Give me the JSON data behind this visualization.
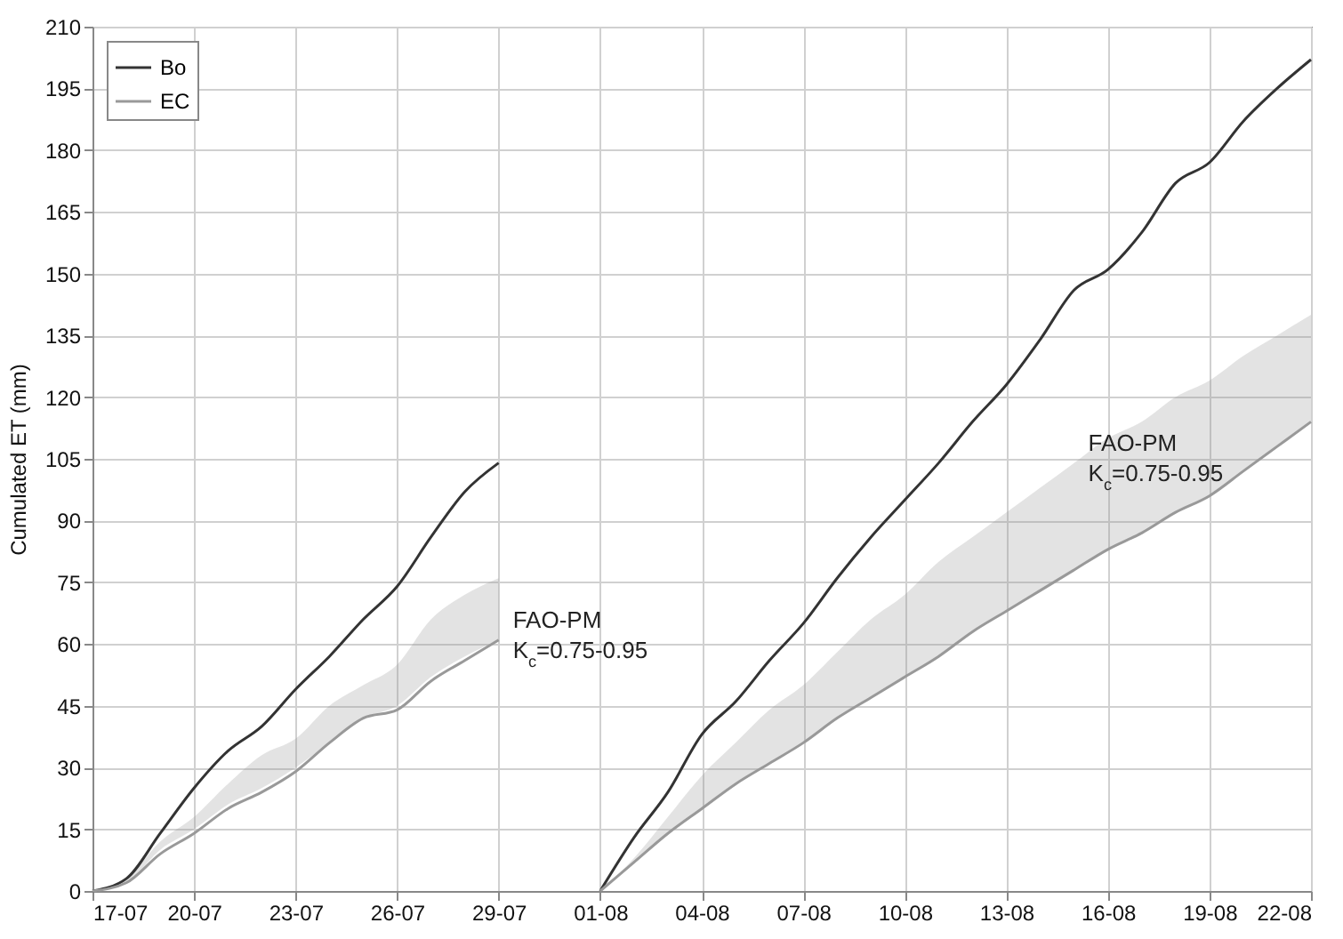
{
  "chart_data": {
    "type": "line",
    "ylabel": "Cumulated ET (mm)",
    "x": [
      "--07-17",
      "--07-18",
      "--07-19",
      "--07-20",
      "--07-21",
      "--07-22",
      "--07-23",
      "--07-24",
      "--07-25",
      "--07-26",
      "--07-27",
      "--07-28",
      "--07-29",
      "--07-30",
      "--07-31",
      "--08-01",
      "--08-02",
      "--08-03",
      "--08-04",
      "--08-05",
      "--08-06",
      "--08-07",
      "--08-08",
      "--08-09",
      "--08-10",
      "--08-11",
      "--08-12",
      "--08-13",
      "--08-14",
      "--08-15",
      "--08-16",
      "--08-17",
      "--08-18",
      "--08-19",
      "--08-20",
      "--08-21",
      "--08-22"
    ],
    "series": [
      {
        "name": "Bo",
        "color": "#333333",
        "values": [
          0,
          3,
          14,
          25,
          34,
          40,
          49,
          57,
          66,
          74,
          86,
          97,
          104,
          null,
          null,
          0,
          13,
          24,
          38,
          46,
          56,
          65,
          76,
          86,
          95,
          104,
          114,
          123,
          134,
          146,
          151,
          160,
          172,
          177,
          187,
          195,
          202
        ]
      },
      {
        "name": "EC",
        "color": "#999999",
        "values": [
          0,
          2,
          9,
          14,
          20,
          24,
          29,
          36,
          42,
          44,
          51,
          56,
          61,
          null,
          null,
          0,
          7,
          14,
          20,
          26,
          31,
          36,
          42,
          47,
          52,
          57,
          63,
          68,
          73,
          78,
          83,
          87,
          92,
          96,
          102,
          108,
          114
        ],
        "lower": [
          0,
          2,
          10,
          15,
          21,
          25,
          30,
          36,
          42,
          45,
          52,
          57,
          61,
          null,
          null,
          0,
          7,
          14,
          20,
          26,
          31,
          36,
          42,
          47,
          52,
          57,
          63,
          68,
          73,
          78,
          83,
          87,
          92,
          96,
          102,
          108,
          114
        ],
        "upper": [
          0,
          3,
          12,
          18,
          26,
          33,
          37,
          45,
          50,
          55,
          66,
          72,
          76,
          null,
          null,
          0,
          8,
          18,
          28,
          36,
          44,
          50,
          58,
          66,
          72,
          80,
          86,
          92,
          98,
          104,
          110,
          114,
          120,
          124,
          130,
          135,
          140
        ]
      }
    ],
    "xlim": [
      "--07-17",
      "--08-22"
    ],
    "xticks": [
      {
        "value": "--07-17",
        "label": "17-07"
      },
      {
        "value": "--07-20",
        "label": "20-07"
      },
      {
        "value": "--07-23",
        "label": "23-07"
      },
      {
        "value": "--07-26",
        "label": "26-07"
      },
      {
        "value": "--07-29",
        "label": "29-07"
      },
      {
        "value": "--08-01",
        "label": "01-08"
      },
      {
        "value": "--08-04",
        "label": "04-08"
      },
      {
        "value": "--08-07",
        "label": "07-08"
      },
      {
        "value": "--08-10",
        "label": "10-08"
      },
      {
        "value": "--08-13",
        "label": "13-08"
      },
      {
        "value": "--08-16",
        "label": "16-08"
      },
      {
        "value": "--08-19",
        "label": "19-08"
      },
      {
        "value": "--08-22",
        "label": "22-08"
      }
    ],
    "ylim": [
      0,
      210
    ],
    "yticks": [
      0,
      15,
      30,
      45,
      60,
      75,
      90,
      105,
      120,
      135,
      150,
      165,
      180,
      195,
      210
    ],
    "annotations": [
      {
        "text": "FAO-PM\nK$_{c}$=0.75-0.95",
        "x": "--07-29",
        "y": 61
      },
      {
        "text": "FAO-PM\nK$_{c}$=0.75-0.95",
        "x": "--08-15",
        "y": 104
      }
    ],
    "grid": true,
    "legend": "top left"
  }
}
